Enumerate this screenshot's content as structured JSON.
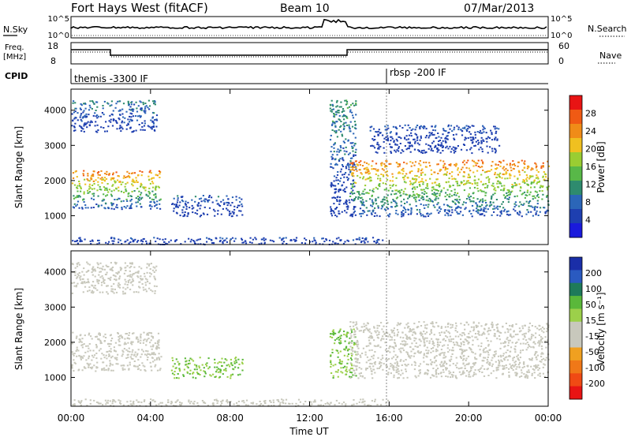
{
  "header": {
    "station": "Fort Hays West (fitACF)",
    "beam": "Beam 10",
    "date": "07/Mar/2013"
  },
  "strip": {
    "nsky_label": "N.Sky",
    "nsky_ticks": [
      "10^5",
      "10^0"
    ],
    "nsearch_label": "N.Search",
    "nsearch_ticks": [
      "10^5",
      "10^0"
    ],
    "freq_label": "Freq.",
    "freq_unit": "[MHz]",
    "freq_ticks": [
      "18",
      "8"
    ],
    "nave_label": "Nave",
    "nave_ticks": [
      "60",
      "0"
    ],
    "cpid_label": "CPID",
    "cpid_segments": [
      "themis -3300 IF",
      "rbsp -200 IF"
    ]
  },
  "colors": {
    "power_scale": [
      "#1a1adc",
      "#1e3fb0",
      "#2b66b8",
      "#2e8b6e",
      "#58b848",
      "#9acd32",
      "#f0c020",
      "#f08c18",
      "#f05a14",
      "#e81414"
    ],
    "velocity_scale": [
      "#1a2ea8",
      "#2a5ac0",
      "#1e7a5a",
      "#5ab83a",
      "#9cd04a",
      "#c8c8bc",
      "#c8c8bc",
      "#f0a020",
      "#f07818",
      "#f04a14",
      "#e81414"
    ]
  },
  "chart_data": [
    {
      "type": "heatmap",
      "title": "",
      "xlabel": "",
      "ylabel": "Slant Range [km]",
      "colorbar_label": "Power [dB]",
      "colorbar_ticks": [
        "28",
        "24",
        "20",
        "16",
        "12",
        "8",
        "4"
      ],
      "y_ticks": [
        "4000",
        "3000",
        "2000",
        "1000"
      ],
      "xlim": [
        0,
        24
      ],
      "ylim": [
        180,
        4600
      ],
      "regions": [
        {
          "t_start": 0.0,
          "t_end": 4.5,
          "r_min": 1200,
          "r_max": 2300,
          "peak_db": 28
        },
        {
          "t_start": 0.0,
          "t_end": 4.3,
          "r_min": 3400,
          "r_max": 4300,
          "peak_db": 12
        },
        {
          "t_start": 5.0,
          "t_end": 8.6,
          "r_min": 1000,
          "r_max": 1600,
          "peak_db": 10
        },
        {
          "t_start": 13.0,
          "t_end": 14.3,
          "r_min": 1000,
          "r_max": 4300,
          "peak_db": 14
        },
        {
          "t_start": 14.0,
          "t_end": 24.0,
          "r_min": 1000,
          "r_max": 2600,
          "peak_db": 28
        },
        {
          "t_start": 15.0,
          "t_end": 21.5,
          "r_min": 2800,
          "r_max": 3600,
          "peak_db": 8
        },
        {
          "t_start": 0.0,
          "t_end": 16.0,
          "r_min": 200,
          "r_max": 400,
          "peak_db": 8
        }
      ]
    },
    {
      "type": "heatmap",
      "title": "",
      "xlabel": "Time UT",
      "ylabel": "Slant Range [km]",
      "colorbar_label": "Velocity [m s⁻¹]",
      "colorbar_ticks": [
        "200",
        "100",
        "50",
        "15",
        "-15",
        "-50",
        "-100",
        "-200"
      ],
      "y_ticks": [
        "4000",
        "3000",
        "2000",
        "1000"
      ],
      "x_ticks": [
        "00:00",
        "04:00",
        "08:00",
        "12:00",
        "16:00",
        "20:00",
        "00:00"
      ],
      "xlim": [
        0,
        24
      ],
      "ylim": [
        180,
        4600
      ],
      "regions": [
        {
          "t_start": 0.0,
          "t_end": 4.5,
          "r_min": 1200,
          "r_max": 2300,
          "velocity": 0
        },
        {
          "t_start": 0.0,
          "t_end": 4.3,
          "r_min": 3400,
          "r_max": 4300,
          "velocity": -40
        },
        {
          "t_start": 5.0,
          "t_end": 8.6,
          "r_min": 1000,
          "r_max": 1600,
          "velocity": 60
        },
        {
          "t_start": 13.0,
          "t_end": 14.3,
          "r_min": 1000,
          "r_max": 2400,
          "velocity": 60
        },
        {
          "t_start": 14.0,
          "t_end": 24.0,
          "r_min": 1000,
          "r_max": 2600,
          "velocity": 0
        },
        {
          "t_start": 0.0,
          "t_end": 16.0,
          "r_min": 200,
          "r_max": 400,
          "velocity": -40
        }
      ]
    }
  ]
}
